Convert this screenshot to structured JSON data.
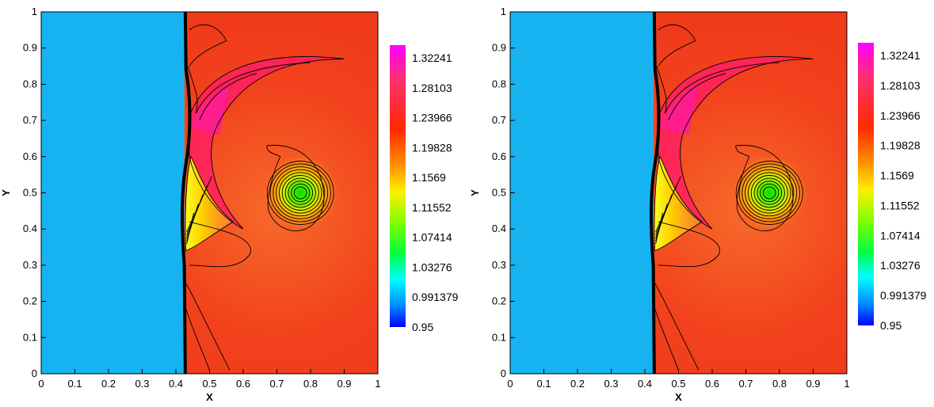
{
  "chart_data": [
    {
      "type": "heatmap",
      "title": "",
      "xlabel": "X",
      "ylabel": "Y",
      "xlim": [
        0,
        1
      ],
      "ylim": [
        0,
        1
      ],
      "x_ticks": [
        "0",
        "0.1",
        "0.2",
        "0.3",
        "0.4",
        "0.5",
        "0.6",
        "0.7",
        "0.8",
        "0.9",
        "1"
      ],
      "y_ticks": [
        "0",
        "0.1",
        "0.2",
        "0.3",
        "0.4",
        "0.5",
        "0.6",
        "0.7",
        "0.8",
        "0.9",
        "1"
      ],
      "colorbar": {
        "min": 0.95,
        "max": 1.34,
        "labels": [
          "1.32241",
          "1.28103",
          "1.23966",
          "1.19828",
          "1.1569",
          "1.11552",
          "1.07414",
          "1.03276",
          "0.991379",
          "0.95"
        ],
        "values": [
          1.32241,
          1.28103,
          1.23966,
          1.19828,
          1.1569,
          1.11552,
          1.07414,
          1.03276,
          0.991379,
          0.95
        ],
        "colors": [
          "#ff00ff",
          "#ff3070",
          "#ff2a00",
          "#ff8800",
          "#ffee00",
          "#88ff00",
          "#00ff00",
          "#00ffff",
          "#0080ff",
          "#0000ff"
        ]
      },
      "features": {
        "shock_x": 0.425,
        "left_region_value": 1.0,
        "right_region_value": 1.21,
        "vortex_center": [
          0.77,
          0.5
        ],
        "vortex_core_value": 1.08
      }
    },
    {
      "type": "heatmap",
      "title": "",
      "xlabel": "X",
      "ylabel": "Y",
      "xlim": [
        0,
        1
      ],
      "ylim": [
        0,
        1
      ],
      "x_ticks": [
        "0",
        "0.1",
        "0.2",
        "0.3",
        "0.4",
        "0.5",
        "0.6",
        "0.7",
        "0.8",
        "0.9",
        "1"
      ],
      "y_ticks": [
        "0",
        "0.1",
        "0.2",
        "0.3",
        "0.4",
        "0.5",
        "0.6",
        "0.7",
        "0.8",
        "0.9",
        "1"
      ],
      "colorbar": {
        "min": 0.95,
        "max": 1.34,
        "labels": [
          "1.32241",
          "1.28103",
          "1.23966",
          "1.19828",
          "1.1569",
          "1.11552",
          "1.07414",
          "1.03276",
          "0.991379",
          "0.95"
        ],
        "values": [
          1.32241,
          1.28103,
          1.23966,
          1.19828,
          1.1569,
          1.11552,
          1.07414,
          1.03276,
          0.991379,
          0.95
        ],
        "colors": [
          "#ff00ff",
          "#ff3070",
          "#ff2a00",
          "#ff8800",
          "#ffee00",
          "#88ff00",
          "#00ff00",
          "#00ffff",
          "#0080ff",
          "#0000ff"
        ]
      },
      "features": {
        "shock_x": 0.425,
        "left_region_value": 1.0,
        "right_region_value": 1.21,
        "vortex_center": [
          0.77,
          0.5
        ],
        "vortex_core_value": 1.08
      }
    }
  ]
}
